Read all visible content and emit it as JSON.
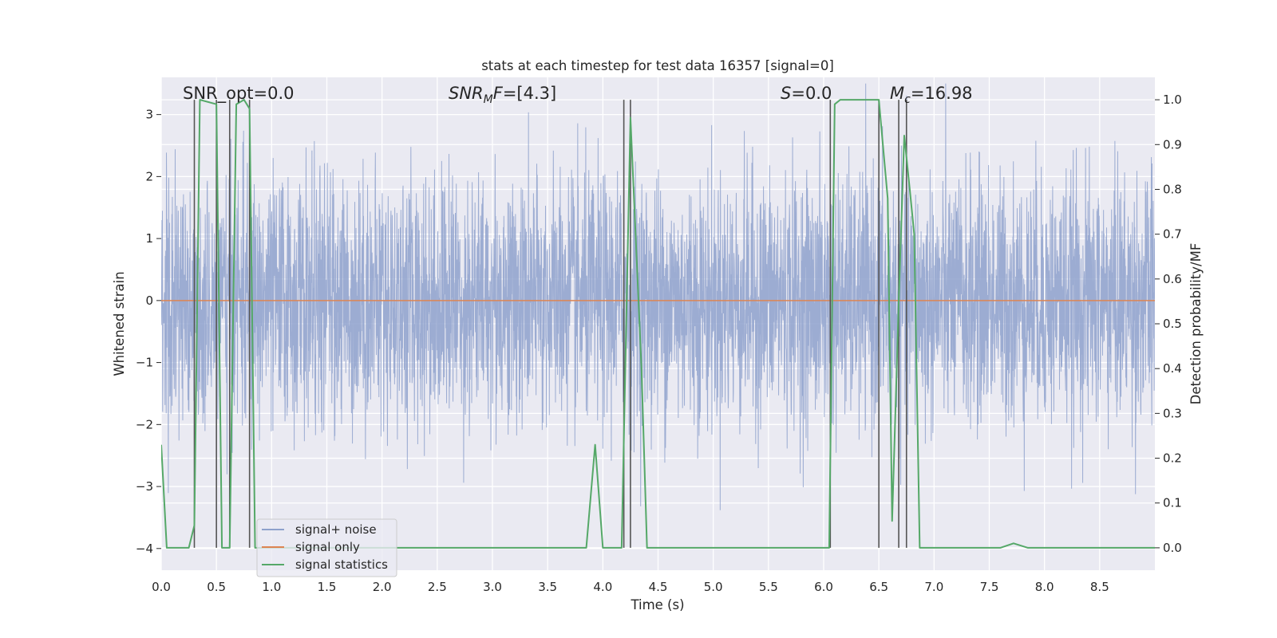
{
  "chart_data": {
    "type": "line",
    "title": "stats at each timestep for test data 16357 [signal=0]",
    "xlabel": "Time (s)",
    "ylabel": "Whitened strain",
    "ylabel_right": "Detection probability/MF",
    "xlim": [
      0.0,
      9.0
    ],
    "ylim": [
      -4.35,
      3.6
    ],
    "ylim_right": [
      -0.05,
      1.05
    ],
    "x_ticks": [
      "0.0",
      "0.5",
      "1.0",
      "1.5",
      "2.0",
      "2.5",
      "3.0",
      "3.5",
      "4.0",
      "4.5",
      "5.0",
      "5.5",
      "6.0",
      "6.5",
      "7.0",
      "7.5",
      "8.0",
      "8.5"
    ],
    "y_ticks": [
      "3",
      "2",
      "1",
      "0",
      "−1",
      "−2",
      "−3",
      "−4"
    ],
    "y_tick_values": [
      3,
      2,
      1,
      0,
      -1,
      -2,
      -3,
      -4
    ],
    "y_ticks_right": [
      "1.0",
      "0.9",
      "0.8",
      "0.7",
      "0.6",
      "0.5",
      "0.4",
      "0.3",
      "0.2",
      "0.1",
      "0.0"
    ],
    "y_tick_values_right": [
      1.0,
      0.9,
      0.8,
      0.7,
      0.6,
      0.5,
      0.4,
      0.3,
      0.2,
      0.1,
      0.0
    ],
    "grid": true,
    "legend_position": "lower-left",
    "annotations": {
      "snr_opt": "SNR_opt=0.0",
      "snr_mf_sym": "SNR",
      "snr_mf_sub": "M",
      "snr_mf_sym2": "F",
      "snr_mf_val": "=[4.3]",
      "s_sym": "S",
      "s_val": "=0.0",
      "mc_sym": "M",
      "mc_sub": "c",
      "mc_val": "=16.98"
    },
    "series": [
      {
        "name": "signal+ noise",
        "color": "#8ea1cc",
        "kind": "noise",
        "description_hidden": true,
        "std": 1.0,
        "duration": 9.0
      },
      {
        "name": "signal only",
        "color": "#dd8452",
        "kind": "constant",
        "y": 0.0
      },
      {
        "name": "signal statistics",
        "color": "#55a868",
        "axis": "right",
        "x": [
          0.0,
          0.05,
          0.25,
          0.3,
          0.35,
          0.5,
          0.55,
          0.6,
          0.62,
          0.68,
          0.75,
          0.8,
          0.85,
          0.88,
          0.9,
          3.85,
          3.93,
          4.0,
          4.17,
          4.25,
          4.35,
          4.4,
          6.05,
          6.1,
          6.15,
          6.5,
          6.58,
          6.62,
          6.68,
          6.73,
          6.78,
          6.82,
          6.87,
          6.92,
          7.6,
          7.72,
          7.85,
          9.0
        ],
        "y": [
          0.23,
          0.0,
          0.0,
          0.05,
          1.0,
          0.99,
          0.0,
          0.0,
          0.0,
          0.99,
          1.0,
          0.98,
          0.0,
          0.0,
          0.0,
          0.0,
          0.23,
          0.0,
          0.0,
          0.96,
          0.4,
          0.0,
          0.0,
          0.99,
          1.0,
          1.0,
          0.78,
          0.06,
          0.55,
          0.92,
          0.8,
          0.7,
          0.0,
          0.0,
          0.0,
          0.01,
          0.0,
          0.0
        ]
      }
    ],
    "vertical_markers": {
      "color": "#555555",
      "x": [
        0.3,
        0.5,
        0.62,
        0.8,
        4.19,
        4.25,
        6.06,
        6.5,
        6.68,
        6.75
      ],
      "y_top": 1.0,
      "y_bottom": 0.0
    }
  }
}
